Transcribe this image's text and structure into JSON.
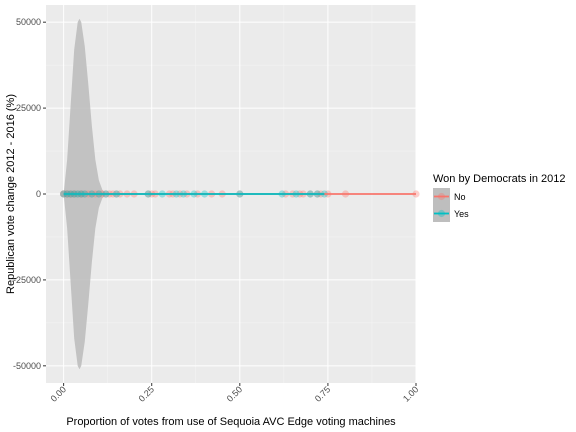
{
  "chart_data": {
    "type": "scatter",
    "xlabel": "Proportion of votes from use of Sequoia AVC Edge voting machines",
    "ylabel": "Republican vote change 2012 - 2016 (%)",
    "xlim": [
      -0.05,
      1.0
    ],
    "ylim": [
      -55000,
      55000
    ],
    "x_ticks": [
      0.0,
      0.25,
      0.5,
      0.75,
      1.0
    ],
    "x_tick_labels": [
      "0.00",
      "0.25",
      "0.50",
      "0.75",
      "1.00"
    ],
    "y_ticks": [
      -50000,
      -25000,
      0,
      25000,
      50000
    ],
    "y_tick_labels": [
      "-50000",
      "-25000",
      "0",
      "25000",
      "50000"
    ],
    "grid": true,
    "legend": {
      "title": "Won by Democrats in 2012",
      "placement": "right",
      "items": [
        {
          "label": "No",
          "color": "#F8766D"
        },
        {
          "label": "Yes",
          "color": "#00BFC4"
        }
      ]
    },
    "series": [
      {
        "name": "No",
        "color": "#F8766D",
        "x": [
          0.0,
          0.0,
          0.01,
          0.01,
          0.02,
          0.02,
          0.03,
          0.03,
          0.04,
          0.05,
          0.05,
          0.06,
          0.07,
          0.08,
          0.09,
          0.1,
          0.11,
          0.12,
          0.13,
          0.14,
          0.15,
          0.16,
          0.18,
          0.2,
          0.24,
          0.25,
          0.26,
          0.3,
          0.31,
          0.33,
          0.35,
          0.38,
          0.42,
          0.45,
          0.5,
          0.63,
          0.65,
          0.67,
          0.68,
          0.7,
          0.72,
          0.73,
          0.75,
          0.8,
          1.0
        ],
        "y": [
          0,
          50,
          -40,
          30,
          0,
          -20,
          20,
          0,
          10,
          0,
          -10,
          0,
          0,
          5,
          0,
          0,
          0,
          -5,
          0,
          0,
          0,
          0,
          0,
          0,
          0,
          0,
          0,
          0,
          0,
          0,
          0,
          0,
          0,
          0,
          0,
          0,
          0,
          0,
          0,
          0,
          0,
          0,
          0,
          0,
          0
        ],
        "fit": {
          "x": [
            0.0,
            1.0
          ],
          "y": [
            0,
            0
          ]
        }
      },
      {
        "name": "Yes",
        "color": "#00BFC4",
        "x": [
          0.0,
          0.01,
          0.02,
          0.03,
          0.04,
          0.05,
          0.06,
          0.08,
          0.1,
          0.12,
          0.15,
          0.24,
          0.28,
          0.32,
          0.34,
          0.37,
          0.4,
          0.5,
          0.62,
          0.66,
          0.7,
          0.72,
          0.74
        ],
        "y": [
          0,
          10,
          0,
          -10,
          0,
          0,
          0,
          0,
          0,
          0,
          0,
          0,
          0,
          0,
          0,
          0,
          0,
          0,
          0,
          0,
          0,
          0,
          0
        ],
        "fit": {
          "x": [
            0.0,
            0.74
          ],
          "y": [
            0,
            0
          ]
        }
      }
    ],
    "confidence_band": {
      "color": "#BEBEBE",
      "x": [
        0.0,
        0.01,
        0.02,
        0.03,
        0.04,
        0.045,
        0.05,
        0.06,
        0.07,
        0.08,
        0.09,
        0.1,
        0.11,
        0.12
      ],
      "upper": [
        0,
        10000,
        26000,
        42000,
        50000,
        51000,
        50000,
        43000,
        32000,
        20000,
        10000,
        4000,
        1200,
        0
      ]
    }
  }
}
